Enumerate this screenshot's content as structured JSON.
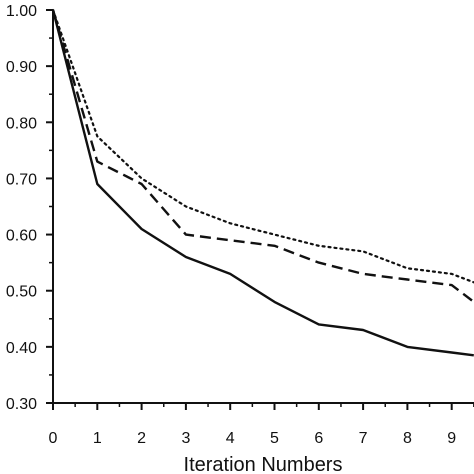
{
  "chart_data": {
    "type": "line",
    "xlabel": "Iteration Numbers",
    "ylabel": "",
    "x": [
      0,
      1,
      2,
      3,
      4,
      5,
      6,
      7,
      8,
      9,
      9.5
    ],
    "xticks": [
      "0",
      "1",
      "2",
      "3",
      "4",
      "5",
      "6",
      "7",
      "8",
      "9"
    ],
    "yticks": [
      "1.00",
      "0.90",
      "0.80",
      "0.70",
      "0.60",
      "0.50",
      "0.40",
      "0.30"
    ],
    "xlim": [
      0,
      9.5
    ],
    "ylim": [
      0.3,
      1.0
    ],
    "grid": false,
    "series": [
      {
        "style": "solid",
        "values": [
          1.0,
          0.69,
          0.61,
          0.56,
          0.53,
          0.48,
          0.44,
          0.43,
          0.4,
          0.39,
          0.385
        ]
      },
      {
        "style": "dashed",
        "values": [
          1.0,
          0.73,
          0.69,
          0.6,
          0.59,
          0.58,
          0.55,
          0.53,
          0.52,
          0.51,
          0.48
        ]
      },
      {
        "style": "dotted",
        "values": [
          1.0,
          0.775,
          0.7,
          0.65,
          0.62,
          0.6,
          0.58,
          0.57,
          0.54,
          0.53,
          0.515
        ]
      }
    ]
  }
}
